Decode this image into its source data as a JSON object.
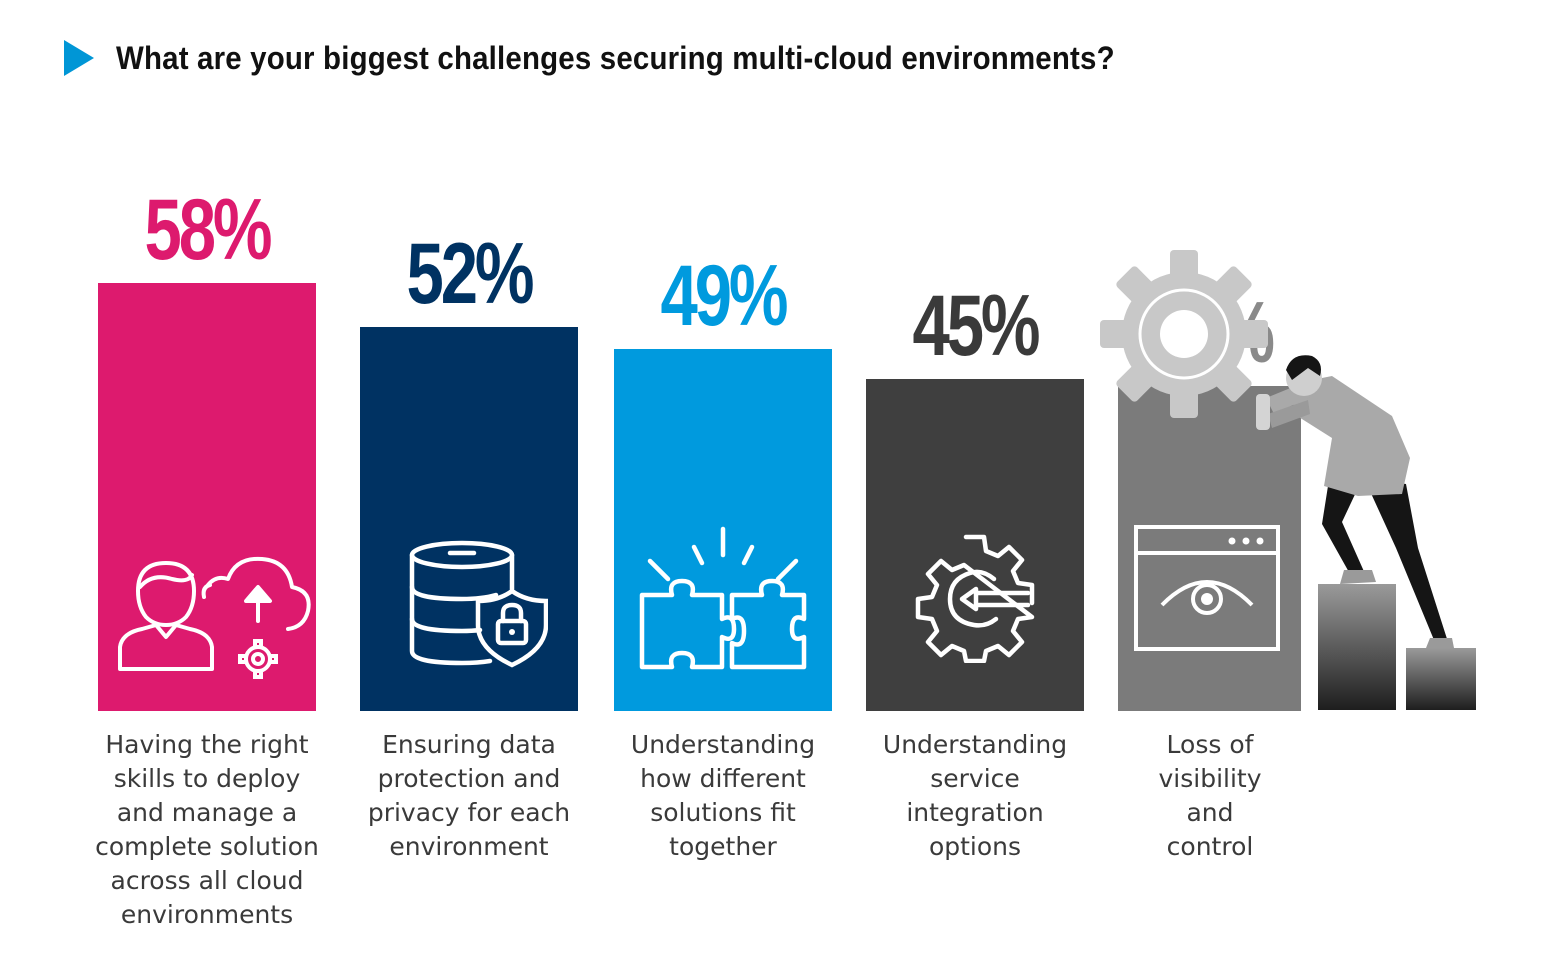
{
  "title": "What are your biggest challenges securing multi-cloud environments?",
  "chart_data": {
    "type": "bar",
    "categories": [
      "Having the right skills to deploy and manage a complete solution across all cloud environments",
      "Ensuring data protection and privacy for each environment",
      "Understanding how different solutions fit together",
      "Understanding service integration options",
      "Loss of visibility and control"
    ],
    "values": [
      58,
      52,
      49,
      45,
      44
    ],
    "value_labels": [
      "58%",
      "52%",
      "49%",
      "45%",
      "44%"
    ],
    "label_lines": [
      "Having the right\nskills to deploy\nand manage a\ncomplete solution\nacross all cloud\nenvironments",
      "Ensuring data\nprotection and\nprivacy for each\nenvironment",
      "Understanding\nhow different\nsolutions fit\ntogether",
      "Understanding\nservice\nintegration\noptions",
      "Loss of\nvisibility\nand\ncontrol"
    ],
    "colors": [
      "#dd1a6e",
      "#003262",
      "#009ade",
      "#3f3f3f",
      "#7b7b7b"
    ],
    "value_label_colors": [
      "#dd1a6e",
      "#003262",
      "#009ade",
      "#3a3a3a",
      "#8a8a8a"
    ],
    "icons": [
      "user-cloud-upload-gear-icon",
      "database-shield-lock-icon",
      "puzzle-pieces-icon",
      "gear-integration-icon",
      "browser-eye-icon"
    ],
    "ylim": [
      0,
      58
    ],
    "grid": false,
    "legend": "none"
  },
  "accent_color": "#0096d6",
  "illustration": "person-pushing-gear-illustration"
}
